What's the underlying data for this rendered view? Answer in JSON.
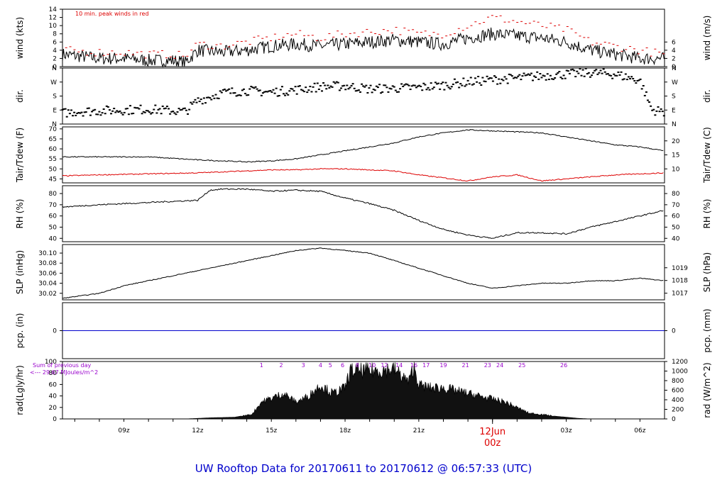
{
  "footer_title": "UW Rooftop Data for 20170611  to  20170612 @ 06:57:33  (UTC)",
  "colors": {
    "title": "#0000cc",
    "peak": "#dd0000",
    "dew": "#dd0000",
    "pcp": "#0000cc",
    "axis": "#000000",
    "annotation": "#9900cc"
  },
  "chart_data": [
    {
      "type": "line",
      "ylabel": "wind (kts)",
      "ylabel_right": "wind (m/s)",
      "annotation": "10 min. peak winds in red",
      "ylim": [
        0,
        14
      ],
      "yticks": [
        "0",
        "2",
        "4",
        "6",
        "8",
        "10",
        "12",
        "14"
      ],
      "yticks_right": [
        "0",
        "2",
        "4",
        "6"
      ],
      "x_hours": [
        6.5,
        8,
        9,
        10,
        11,
        11.5,
        12,
        13,
        14,
        15,
        16,
        17,
        18,
        19,
        20,
        21,
        22,
        23,
        24,
        25,
        26,
        27,
        28,
        29,
        30,
        30.5,
        31
      ],
      "series": [
        {
          "name": "wind",
          "values": [
            3,
            2,
            2,
            1.5,
            1.5,
            1,
            4,
            3.5,
            4,
            5,
            5.5,
            5,
            5.5,
            6,
            6.5,
            6,
            5.5,
            7,
            8,
            7.5,
            7,
            6,
            4,
            3,
            2,
            2,
            2
          ]
        },
        {
          "name": "peak",
          "values": [
            4,
            3.5,
            3.5,
            3,
            3,
            2.5,
            5.5,
            5,
            6,
            7,
            8,
            7,
            8,
            8.5,
            9,
            8,
            8,
            10,
            12,
            11,
            10,
            9,
            6,
            5,
            4,
            3.5,
            3
          ]
        }
      ]
    },
    {
      "type": "scatter",
      "ylabel": "dir.",
      "ylabel_right": "dir.",
      "yticks": [
        "N",
        "E",
        "S",
        "W",
        "N"
      ],
      "yticks_right": [
        "N",
        "E",
        "S",
        "W",
        "N"
      ],
      "x_hours": [
        6.5,
        7,
        8,
        9,
        10,
        11,
        11.5,
        12,
        13,
        14,
        15,
        16,
        17,
        18,
        19,
        20,
        21,
        22,
        23,
        24,
        25,
        26,
        27,
        28,
        29,
        30,
        30.5,
        31
      ],
      "values_deg": [
        70,
        80,
        85,
        90,
        95,
        85,
        80,
        150,
        200,
        215,
        205,
        220,
        240,
        245,
        225,
        230,
        235,
        250,
        270,
        285,
        295,
        310,
        320,
        330,
        320,
        280,
        90,
        80
      ]
    },
    {
      "type": "line",
      "ylabel": "Tair/Tdew (F)",
      "ylabel_right": "Tair/Tdew (C)",
      "ylim": [
        43,
        71
      ],
      "yticks": [
        "45",
        "50",
        "55",
        "60",
        "65",
        "70"
      ],
      "yticks_right": [
        "10",
        "15",
        "20"
      ],
      "x_hours": [
        6.5,
        8,
        10,
        12,
        14,
        15,
        16,
        17,
        18,
        19,
        20,
        21,
        22,
        23,
        24,
        25,
        26,
        27,
        28,
        29,
        30,
        31
      ],
      "series": [
        {
          "name": "Tair",
          "values": [
            56,
            56,
            56,
            54.5,
            53.5,
            54,
            55,
            57,
            59,
            61,
            63,
            66,
            68,
            69.5,
            69,
            68.5,
            68,
            66,
            64,
            62,
            61,
            59
          ]
        },
        {
          "name": "Tdew",
          "values": [
            46.5,
            47,
            47.5,
            48,
            49,
            49.5,
            49.5,
            50,
            50,
            49.5,
            49,
            47,
            45.5,
            44,
            46,
            47,
            44,
            45,
            46,
            47,
            47.5,
            48
          ]
        }
      ]
    },
    {
      "type": "line",
      "ylabel": "RH (%)",
      "ylabel_right": "RH (%)",
      "ylim": [
        37,
        87
      ],
      "yticks": [
        "40",
        "50",
        "60",
        "70",
        "80"
      ],
      "yticks_right": [
        "40",
        "50",
        "60",
        "70",
        "80"
      ],
      "x_hours": [
        6.5,
        8,
        10,
        12,
        12.5,
        13,
        14,
        15,
        16,
        17,
        18,
        19,
        20,
        21,
        22,
        23,
        24,
        25,
        26,
        27,
        28,
        29,
        30,
        31
      ],
      "values": [
        68,
        70,
        72,
        74,
        83,
        84,
        84,
        82,
        83,
        82,
        76,
        71,
        65,
        56,
        48,
        43,
        40,
        45,
        45,
        44,
        50,
        55,
        60,
        65
      ]
    },
    {
      "type": "line",
      "ylabel": "SLP (inHg)",
      "ylabel_right": "SLP (hPa)",
      "ylim": [
        30.007,
        30.117
      ],
      "yticks": [
        "30.02",
        "30.04",
        "30.06",
        "30.08",
        "30.10"
      ],
      "yticks_right": [
        "1017",
        "1018",
        "1019"
      ],
      "x_hours": [
        6.5,
        8,
        9,
        10,
        11,
        12,
        13,
        14,
        15,
        16,
        17,
        18,
        19,
        20,
        21,
        22,
        23,
        23.5,
        24,
        25,
        26,
        27,
        28,
        29,
        30,
        31
      ],
      "values": [
        30.01,
        30.02,
        30.035,
        30.045,
        30.055,
        30.065,
        30.075,
        30.085,
        30.095,
        30.105,
        30.11,
        30.105,
        30.1,
        30.085,
        30.07,
        30.055,
        30.04,
        30.035,
        30.03,
        30.035,
        30.04,
        30.04,
        30.045,
        30.045,
        30.05,
        30.045
      ]
    },
    {
      "type": "line",
      "ylabel": "pcp. (in)",
      "ylabel_right": "pcp. (mm)",
      "yticks": [
        "0"
      ],
      "yticks_right": [
        "0"
      ],
      "ylim": [
        -1,
        1
      ],
      "values": [
        0
      ]
    },
    {
      "type": "area",
      "ylabel": "rad(Lgly/hr)",
      "ylabel_right": "rad (W/m^2)",
      "ylim": [
        0,
        100
      ],
      "yticks": [
        "0",
        "20",
        "40",
        "60",
        "80",
        "100"
      ],
      "yticks_right": [
        "0",
        "200",
        "400",
        "600",
        "800",
        "1000",
        "1200"
      ],
      "annotation": [
        "Sum of previous day",
        "<--- 29.67 MJoules/m^2"
      ],
      "marker_labels": [
        "1",
        "2",
        "3",
        "4",
        "5",
        "6",
        "8",
        "10",
        "12",
        "14",
        "16",
        "17",
        "19",
        "21",
        "23",
        "24",
        "25",
        "26"
      ],
      "marker_hours": [
        14.6,
        15.4,
        16.3,
        17.0,
        17.4,
        17.9,
        18.5,
        19.1,
        19.6,
        20.2,
        20.8,
        21.3,
        22.0,
        22.9,
        23.8,
        24.3,
        25.2,
        26.9
      ],
      "x_hours": [
        6.5,
        11.5,
        12.5,
        13.5,
        14.2,
        14.6,
        15.5,
        16,
        16.5,
        17,
        17.5,
        18,
        18.2,
        19,
        20,
        20.6,
        20.8,
        21,
        21.5,
        22,
        22.5,
        23,
        23.5,
        24,
        24.5,
        25,
        25.5,
        26,
        26.5,
        27,
        27.5,
        28,
        28.5,
        31
      ],
      "values": [
        0,
        0,
        2,
        3,
        8,
        30,
        45,
        30,
        40,
        60,
        45,
        55,
        85,
        85,
        88,
        65,
        95,
        60,
        55,
        55,
        50,
        45,
        40,
        35,
        30,
        20,
        10,
        8,
        5,
        3,
        1,
        0,
        0,
        0
      ]
    }
  ],
  "x_axis": {
    "ticks": [
      "09z",
      "12z",
      "15z",
      "18z",
      "21z",
      "03z",
      "06z"
    ],
    "tick_hours": [
      9,
      12,
      15,
      18,
      21,
      27,
      30
    ],
    "day_label": "12Jun",
    "day_sublabel": "00z",
    "day_hour": 24
  }
}
